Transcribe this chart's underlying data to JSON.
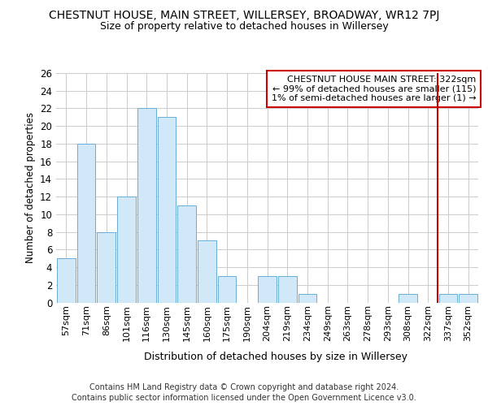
{
  "title": "CHESTNUT HOUSE, MAIN STREET, WILLERSEY, BROADWAY, WR12 7PJ",
  "subtitle": "Size of property relative to detached houses in Willersey",
  "xlabel_bottom": "Distribution of detached houses by size in Willersey",
  "ylabel": "Number of detached properties",
  "bar_labels": [
    "57sqm",
    "71sqm",
    "86sqm",
    "101sqm",
    "116sqm",
    "130sqm",
    "145sqm",
    "160sqm",
    "175sqm",
    "190sqm",
    "204sqm",
    "219sqm",
    "234sqm",
    "249sqm",
    "263sqm",
    "278sqm",
    "293sqm",
    "308sqm",
    "322sqm",
    "337sqm",
    "352sqm"
  ],
  "bar_values": [
    5,
    18,
    8,
    12,
    22,
    21,
    11,
    7,
    3,
    0,
    3,
    3,
    1,
    0,
    0,
    0,
    0,
    1,
    0,
    1,
    1
  ],
  "bar_color": "#d0e8f8",
  "bar_edge_color": "#6aaed6",
  "ylim": [
    0,
    26
  ],
  "yticks": [
    0,
    2,
    4,
    6,
    8,
    10,
    12,
    14,
    16,
    18,
    20,
    22,
    24,
    26
  ],
  "vline_index": 18,
  "vline_color": "#cc0000",
  "annotation_text": "CHESTNUT HOUSE MAIN STREET: 322sqm\n← 99% of detached houses are smaller (115)\n1% of semi-detached houses are larger (1) →",
  "annotation_box_color": "#ffffff",
  "annotation_box_edgecolor": "#cc0000",
  "footer_line1": "Contains HM Land Registry data © Crown copyright and database right 2024.",
  "footer_line2": "Contains public sector information licensed under the Open Government Licence v3.0.",
  "background_color": "#ffffff",
  "grid_color": "#cccccc"
}
